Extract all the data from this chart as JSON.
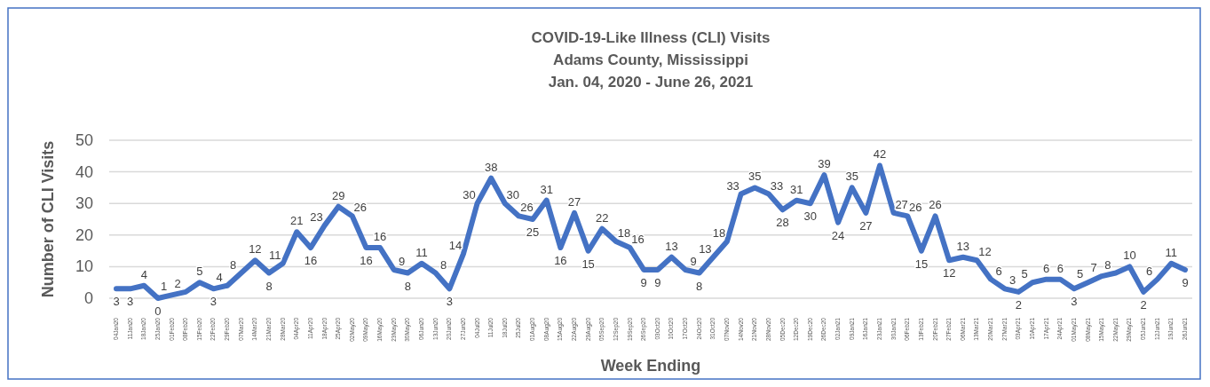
{
  "chart_data": {
    "type": "line",
    "title": "COVID-19-Like Illness (CLI) Visits\nAdams County, Mississippi\nJan. 04, 2020 - June 26, 2021",
    "xlabel": "Week Ending",
    "ylabel": "Number of CLI Visits",
    "categories": [
      "04Jan20",
      "11Jan20",
      "18Jan20",
      "25Jan20",
      "01Feb20",
      "08Feb20",
      "15Feb20",
      "22Feb20",
      "29Feb20",
      "07Mar20",
      "14Mar20",
      "21Mar20",
      "28Mar20",
      "04Apr20",
      "11Apr20",
      "18Apr20",
      "25Apr20",
      "02May20",
      "09May20",
      "16May20",
      "23May20",
      "30May20",
      "06Jun20",
      "13Jun20",
      "20Jun20",
      "27Jun20",
      "04Jul20",
      "11Jul20",
      "18Jul20",
      "25Jul20",
      "01Aug20",
      "08Aug20",
      "15Aug20",
      "22Aug20",
      "29Aug20",
      "05Sep20",
      "12Sep20",
      "19Sep20",
      "26Sep20",
      "03Oct20",
      "10Oct20",
      "17Oct20",
      "24Oct20",
      "31Oct20",
      "07Nov20",
      "14Nov20",
      "21Nov20",
      "28Nov20",
      "05Dec20",
      "12Dec20",
      "19Dec20",
      "26Dec20",
      "02Jan21",
      "09Jan21",
      "16Jan21",
      "23Jan21",
      "30Jan21",
      "06Feb21",
      "13Feb21",
      "20Feb21",
      "27Feb21",
      "06Mar21",
      "13Mar21",
      "20Mar21",
      "27Mar21",
      "03Apr21",
      "10Apr21",
      "17Apr21",
      "24Apr21",
      "01May21",
      "08May21",
      "15May21",
      "22May21",
      "29May21",
      "05Jun21",
      "12Jun21",
      "19Jun21",
      "26Jun21"
    ],
    "series": [
      {
        "color": "#4472c4",
        "values": [
          3,
          3,
          4,
          0,
          1,
          2,
          5,
          3,
          4,
          8,
          12,
          8,
          11,
          21,
          16,
          23,
          29,
          26,
          16,
          16,
          9,
          8,
          11,
          8,
          3,
          14,
          30,
          38,
          30,
          26,
          25,
          31,
          16,
          27,
          15,
          22,
          18,
          16,
          9,
          9,
          13,
          9,
          8,
          13,
          18,
          33,
          35,
          33,
          28,
          31,
          30,
          39,
          24,
          35,
          27,
          42,
          27,
          26,
          15,
          26,
          12,
          13,
          12,
          6,
          3,
          2,
          5,
          6,
          6,
          3,
          5,
          7,
          8,
          10,
          2,
          6,
          11,
          9
        ]
      }
    ],
    "ylim": [
      0,
      50
    ],
    "yticks": [
      0,
      10,
      20,
      30,
      40,
      50
    ],
    "grid": "y",
    "data_labels": true,
    "marker": "none",
    "line_style": "solid"
  }
}
